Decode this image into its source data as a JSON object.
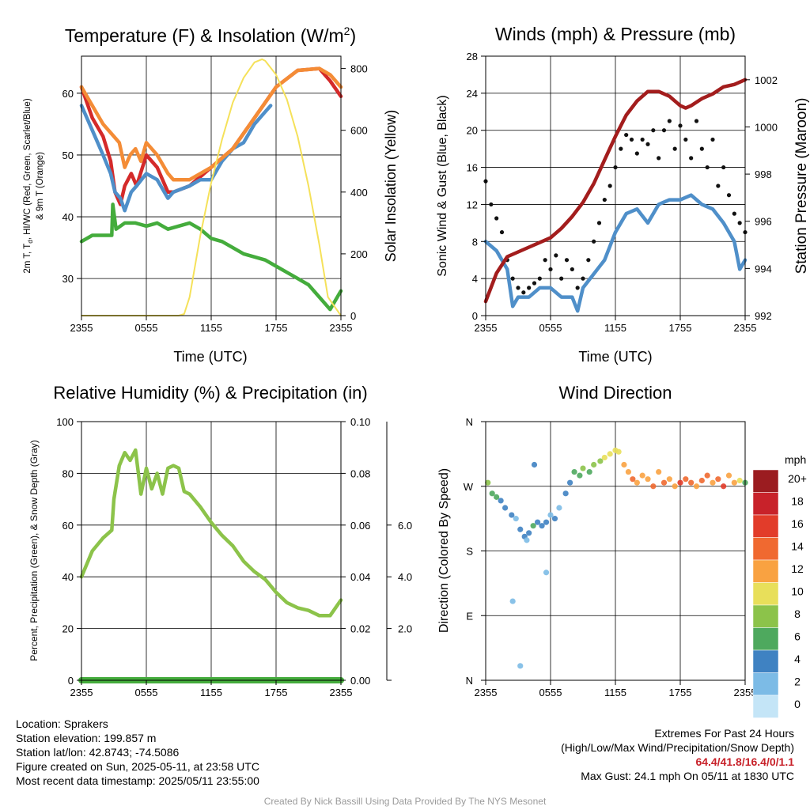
{
  "panels": {
    "temperature": {
      "title_main": "Temperature (F) & Insolation (W/m",
      "title_sup": "2",
      "title_end": ")",
      "ylabel_line1_pre": "2m T, T",
      "ylabel_line1_sub": "d",
      "ylabel_line1_post": ", HI/WC (Red, Green, Scarlet/Blue)",
      "ylabel_line2": "& 9m T (Orange)",
      "ylabel_right": "Solar Insolation (Yellow)",
      "xlabel": "Time (UTC)"
    },
    "winds": {
      "title": "Winds (mph) & Pressure (mb)",
      "ylabel": "Sonic Wind & Gust (Blue, Black)",
      "ylabel_right": "Station Pressure (Maroon)",
      "xlabel": "Time (UTC)"
    },
    "humidity": {
      "title": "Relative Humidity (%) & Precipitation (in)",
      "ylabel": "Percent, Precipitation (Green), & Snow Depth (Gray)"
    },
    "direction": {
      "title": "Wind Direction",
      "ylabel": "Direction (Colored By Speed)"
    }
  },
  "colorbar": {
    "title": "mph",
    "labels": [
      "20+",
      "18",
      "16",
      "14",
      "12",
      "10",
      "8",
      "6",
      "4",
      "2",
      "0"
    ],
    "colors": [
      "#9b1c20",
      "#c8222a",
      "#e23c2a",
      "#f06930",
      "#f9a241",
      "#e8df5a",
      "#8cc34a",
      "#4ea95e",
      "#3f82c2",
      "#7cbbe6",
      "#c4e5f7"
    ]
  },
  "info": {
    "location": "Location: Sprakers",
    "elevation": "Station elevation: 199.857 m",
    "latlon": "Station lat/lon: 42.8743; -74.5086",
    "created": "Figure created on Sun, 2025-05-11, at 23:58 UTC",
    "recent": "Most recent data timestamp: 2025/05/11 23:55:00"
  },
  "extremes": {
    "title": "Extremes For Past 24 Hours",
    "subtitle": "(High/Low/Max Wind/Precipitation/Snow Depth)",
    "values": "64.4/41.8/16.4/0/1.1",
    "gust": "Max Gust: 24.1 mph On 05/11 at 1830 UTC"
  },
  "credit": "Created By Nick Bassill Using Data Provided By The NYS Mesonet",
  "chart_data": [
    {
      "type": "line",
      "panel": "temperature",
      "x_ticks": [
        "2355",
        "0555",
        "1155",
        "1755",
        "2355"
      ],
      "xlim_hours": [
        0,
        24
      ],
      "ylim": [
        24,
        66
      ],
      "yticks": [
        30,
        40,
        50,
        60
      ],
      "ylim_right": [
        0,
        840
      ],
      "yticks_right": [
        0,
        200,
        400,
        600,
        800
      ],
      "series": [
        {
          "name": "2m T",
          "color": "#d42a2a",
          "x": [
            0,
            1,
            2,
            2.7,
            3.1,
            3.6,
            4,
            4.6,
            5.1,
            6,
            7,
            8,
            8.5,
            10,
            12,
            14,
            16,
            18,
            20,
            22,
            23,
            24
          ],
          "y": [
            61,
            56,
            53,
            49,
            44,
            42,
            45,
            47,
            45,
            50,
            48,
            44,
            44,
            45,
            48,
            51,
            56,
            61,
            63.7,
            64,
            62,
            59.5
          ]
        },
        {
          "name": "HI/WC",
          "color": "#4f8fc9",
          "x": [
            0,
            1,
            2,
            2.7,
            3.1,
            3.6,
            4,
            4.6,
            5.1,
            6,
            7,
            8,
            8.5,
            10,
            11,
            12,
            13,
            14,
            15,
            16,
            17,
            17.5
          ],
          "y": [
            58,
            54,
            50,
            47,
            44,
            43,
            41,
            44,
            45,
            47,
            46,
            43,
            44,
            45,
            46,
            46,
            49,
            51,
            52,
            55,
            57,
            58
          ]
        },
        {
          "name": "Td",
          "color": "#44ac3c",
          "x": [
            0,
            1,
            2,
            2.8,
            2.9,
            3.2,
            4,
            5,
            6,
            7,
            8,
            10,
            11,
            12,
            13,
            14,
            15,
            16,
            17,
            18,
            19,
            20,
            21,
            22,
            23,
            24
          ],
          "y": [
            36,
            37,
            37,
            37,
            42,
            38,
            39,
            39,
            38.5,
            39,
            38,
            39,
            38,
            36.5,
            36,
            35,
            34,
            33.5,
            33,
            32,
            31,
            30,
            29,
            27,
            25,
            28
          ]
        },
        {
          "name": "9m T",
          "color": "#f48c36",
          "x": [
            0,
            1,
            2,
            3,
            3.5,
            4,
            4.5,
            5,
            5.5,
            6,
            7,
            8,
            8.5,
            10,
            12,
            14,
            16,
            18,
            20,
            22,
            23,
            24
          ],
          "y": [
            61,
            58,
            55,
            53,
            52,
            48,
            50,
            51,
            49,
            52,
            50,
            47,
            46,
            46,
            48,
            51,
            56,
            61,
            63.7,
            64,
            63,
            61
          ]
        },
        {
          "name": "Solar Insolation",
          "color": "#f5e15a",
          "axis": "right",
          "x": [
            0,
            9,
            9.5,
            10,
            11,
            12,
            13,
            14,
            15,
            16,
            16.7,
            17,
            18,
            19,
            20,
            21,
            22,
            22.8,
            24
          ],
          "y": [
            0,
            0,
            5,
            60,
            260,
            430,
            570,
            690,
            770,
            820,
            830,
            825,
            780,
            700,
            580,
            420,
            230,
            60,
            0
          ]
        }
      ]
    },
    {
      "type": "line",
      "panel": "winds",
      "x_ticks": [
        "2355",
        "0555",
        "1155",
        "1755",
        "2355"
      ],
      "xlim_hours": [
        0,
        24
      ],
      "ylim": [
        0,
        28
      ],
      "yticks": [
        0,
        4,
        8,
        12,
        16,
        20,
        24,
        28
      ],
      "ylim_right": [
        992,
        1003
      ],
      "yticks_right": [
        992,
        994,
        996,
        998,
        1000,
        1002
      ],
      "series": [
        {
          "name": "Sonic Wind",
          "color": "#4f8fc9",
          "x": [
            0,
            1,
            2,
            2.5,
            3,
            4,
            5,
            6,
            7,
            8,
            8.5,
            9,
            10,
            11,
            12,
            13,
            14,
            15,
            16,
            17,
            18,
            19,
            20,
            21,
            22,
            23,
            23.5,
            24
          ],
          "y": [
            8,
            7,
            5,
            1,
            2,
            2,
            3,
            3,
            2,
            2,
            0.5,
            3,
            4.5,
            6,
            9,
            11,
            11.5,
            10,
            12,
            12.5,
            12.5,
            13,
            12,
            11.5,
            10,
            8,
            5,
            6
          ]
        },
        {
          "name": "Gust",
          "color": "#111111",
          "marker": "dot",
          "x": [
            0,
            0.5,
            1,
            1.5,
            2,
            2.5,
            3,
            3.5,
            4,
            4.5,
            5,
            5.5,
            6,
            6.5,
            7,
            7.5,
            8,
            8.5,
            9,
            9.5,
            10,
            10.5,
            11,
            11.5,
            12,
            12.5,
            13,
            13.5,
            14,
            14.5,
            15,
            15.5,
            16,
            16.5,
            17,
            17.5,
            18,
            18.5,
            19,
            19.5,
            20,
            20.5,
            21,
            21.5,
            22,
            22.5,
            23,
            23.5,
            24
          ],
          "y": [
            14.5,
            12,
            10.5,
            9,
            6,
            4,
            3,
            2.5,
            3,
            3.5,
            4,
            6,
            5,
            6.5,
            4,
            6,
            5,
            3,
            4,
            6,
            8,
            10,
            12.5,
            14,
            16,
            18,
            19.5,
            19,
            17.5,
            19,
            18.5,
            20,
            17,
            20,
            21,
            18,
            20.5,
            19,
            17,
            21,
            18,
            16,
            19,
            14,
            16,
            13,
            11,
            10,
            9
          ]
        },
        {
          "name": "Station Pressure",
          "color": "#a31d1d",
          "axis": "right",
          "x": [
            0,
            1,
            2,
            3,
            4,
            5,
            6,
            7,
            8,
            9,
            10,
            11,
            12,
            13,
            14,
            15,
            16,
            17,
            18,
            18.5,
            19,
            20,
            21,
            22,
            23,
            24
          ],
          "y": [
            992.6,
            993.8,
            994.5,
            994.7,
            994.9,
            995.1,
            995.3,
            995.7,
            996.2,
            996.8,
            997.6,
            998.6,
            999.6,
            1000.5,
            1001.1,
            1001.5,
            1001.5,
            1001.3,
            1000.9,
            1000.8,
            1000.9,
            1001.2,
            1001.4,
            1001.7,
            1001.8,
            1002
          ]
        }
      ]
    },
    {
      "type": "line",
      "panel": "humidity",
      "x_ticks": [
        "2355",
        "0555",
        "1155",
        "1755",
        "2355"
      ],
      "xlim_hours": [
        0,
        24
      ],
      "ylim": [
        0,
        100
      ],
      "yticks": [
        0,
        20,
        40,
        60,
        80,
        100
      ],
      "ylim_right": [
        0,
        0.1
      ],
      "yticks_right": [
        "0.00",
        "0.02",
        "0.04",
        "0.06",
        "0.08",
        "0.10"
      ],
      "ylim_snow": [
        0,
        10
      ],
      "yticks_snow": [
        "2.0",
        "4.0",
        "6.0"
      ],
      "series": [
        {
          "name": "Relative Humidity",
          "color": "#8cc34a",
          "x": [
            0,
            1,
            2,
            2.8,
            3,
            3.5,
            4,
            4.5,
            5,
            5.5,
            6,
            6.5,
            7,
            7.5,
            8,
            8.5,
            9,
            9.5,
            10,
            11,
            12,
            13,
            14,
            15,
            16,
            17,
            18,
            19,
            20,
            21,
            22,
            23,
            24
          ],
          "y": [
            40,
            50,
            55,
            58,
            70,
            83,
            88,
            85,
            89,
            72,
            82,
            74,
            80,
            72,
            82,
            83,
            82,
            73,
            72,
            67,
            61,
            56,
            52,
            46,
            42,
            39,
            34,
            30,
            28,
            27,
            25,
            25,
            31
          ]
        },
        {
          "name": "Precipitation",
          "color": "#44ac3c",
          "x": [
            0,
            24
          ],
          "y": [
            0,
            0
          ]
        }
      ]
    },
    {
      "type": "scatter",
      "panel": "direction",
      "x_ticks": [
        "2355",
        "0555",
        "1155",
        "1755",
        "2355"
      ],
      "xlim_hours": [
        0,
        24
      ],
      "direction_ticks": [
        "N",
        "E",
        "S",
        "W",
        "N"
      ],
      "ylim_deg": [
        0,
        360
      ],
      "x": [
        0.2,
        0.6,
        1,
        1.4,
        1.8,
        2.4,
        2.8,
        3.2,
        3.6,
        4,
        4.4,
        4.8,
        5.2,
        5.6,
        6,
        6.4,
        6.8,
        2.5,
        3.2,
        3.8,
        4.5,
        5.6,
        7.4,
        7.8,
        8.2,
        8.7,
        9,
        9.6,
        10,
        10.6,
        11,
        11.5,
        12,
        12.3,
        12.8,
        13.2,
        13.6,
        14,
        14.5,
        15,
        15.5,
        16,
        16.5,
        17,
        17.5,
        18,
        18.5,
        19,
        19.5,
        20,
        20.5,
        21,
        21.5,
        22,
        22.5,
        23,
        23.5,
        24
      ],
      "y": [
        275,
        260,
        255,
        250,
        240,
        230,
        225,
        210,
        200,
        205,
        215,
        220,
        215,
        220,
        230,
        225,
        240,
        110,
        20,
        195,
        300,
        150,
        260,
        275,
        290,
        285,
        295,
        290,
        300,
        305,
        310,
        315,
        320,
        318,
        300,
        290,
        280,
        275,
        285,
        280,
        270,
        290,
        275,
        280,
        270,
        275,
        280,
        275,
        270,
        278,
        285,
        275,
        280,
        270,
        285,
        275,
        278,
        275
      ],
      "speed": [
        7,
        6,
        5,
        4,
        3,
        3,
        2,
        4,
        3,
        4,
        5,
        4,
        3,
        4,
        2,
        3,
        2,
        2,
        2,
        1,
        3,
        1,
        4,
        4,
        6,
        5,
        7,
        6,
        7,
        8,
        9,
        10,
        9,
        10,
        12,
        11,
        13,
        12,
        11,
        12,
        14,
        12,
        13,
        11,
        12,
        15,
        14,
        13,
        12,
        14,
        13,
        12,
        13,
        15,
        12,
        11,
        9,
        6
      ]
    }
  ]
}
